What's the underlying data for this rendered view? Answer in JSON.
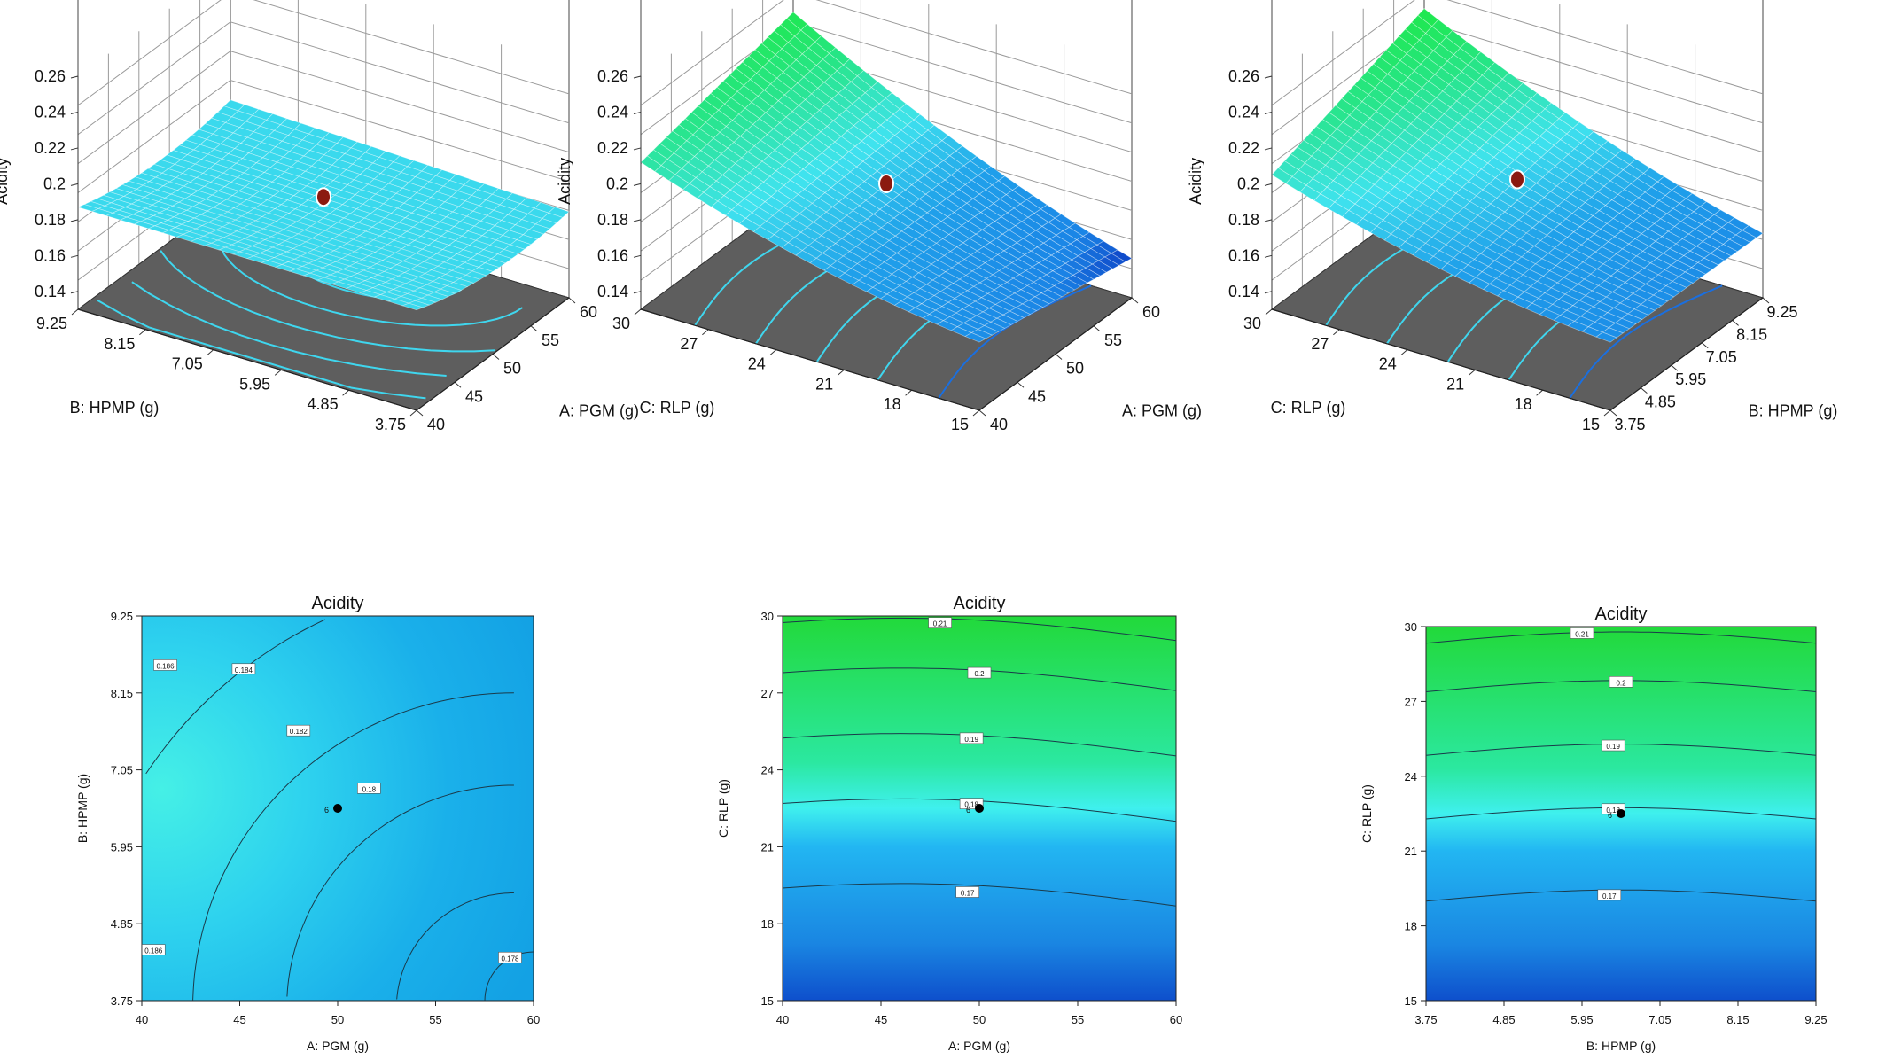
{
  "chart_data": [
    {
      "panel": "3d-surface",
      "type": "surface",
      "zlabel": "Acidity",
      "zticks": [
        "0.14",
        "0.16",
        "0.18",
        "0.2",
        "0.22",
        "0.24",
        "0.26"
      ],
      "zlim": [
        0.14,
        0.26
      ],
      "xlabel": "A: PGM (g)",
      "xticks": [
        "40",
        "45",
        "50",
        "55",
        "60"
      ],
      "ylabel": "B: HPMP (g)",
      "yticks": [
        "3.75",
        "4.85",
        "5.95",
        "7.05",
        "8.15",
        "9.25"
      ],
      "corner_values": {
        "xmin_ymin": 0.186,
        "xmax_ymin": 0.178,
        "xmin_ymax": 0.187,
        "xmax_ymax": 0.184
      },
      "center_point": {
        "x": 50,
        "y": 6.5,
        "z": 0.181
      }
    },
    {
      "panel": "3d-surface",
      "type": "surface",
      "zlabel": "Acidity",
      "zticks": [
        "0.14",
        "0.16",
        "0.18",
        "0.2",
        "0.22",
        "0.24",
        "0.26"
      ],
      "zlim": [
        0.14,
        0.26
      ],
      "xlabel": "A: PGM (g)",
      "xticks": [
        "40",
        "45",
        "50",
        "55",
        "60"
      ],
      "ylabel": "C: RLP (g)",
      "yticks": [
        "15",
        "18",
        "21",
        "24",
        "27",
        "30"
      ],
      "corner_values": {
        "xmin_ymin": 0.168,
        "xmax_ymin": 0.152,
        "xmin_ymax": 0.212,
        "xmax_ymax": 0.233
      },
      "center_point": {
        "x": 50,
        "y": 22.5,
        "z": 0.181
      }
    },
    {
      "panel": "3d-surface",
      "type": "surface",
      "zlabel": "Acidity",
      "zticks": [
        "0.14",
        "0.16",
        "0.18",
        "0.2",
        "0.22",
        "0.24",
        "0.26"
      ],
      "zlim": [
        0.14,
        0.26
      ],
      "xlabel": "B: HPMP (g)",
      "xticks": [
        "3.75",
        "4.85",
        "5.95",
        "7.05",
        "8.15",
        "9.25"
      ],
      "ylabel": "C: RLP (g)",
      "yticks": [
        "15",
        "18",
        "21",
        "24",
        "27",
        "30"
      ],
      "corner_values": {
        "xmin_ymin": 0.168,
        "xmax_ymin": 0.166,
        "xmin_ymax": 0.205,
        "xmax_ymax": 0.235
      },
      "center_point": {
        "x": 6.5,
        "y": 22.5,
        "z": 0.181
      }
    },
    {
      "panel": "contour",
      "type": "heatmap",
      "title": "Acidity",
      "xlabel": "A: PGM (g)",
      "xticks": [
        "40",
        "45",
        "50",
        "55",
        "60"
      ],
      "ylabel": "B: HPMP (g)",
      "yticks": [
        "3.75",
        "4.85",
        "5.95",
        "7.05",
        "8.15",
        "9.25"
      ],
      "contour_labels": [
        "0.186",
        "0.184",
        "0.182",
        "0.18",
        "0.186",
        "0.178"
      ],
      "center_point": {
        "x": 50,
        "y": 6.5,
        "label": "6"
      }
    },
    {
      "panel": "contour",
      "type": "heatmap",
      "title": "Acidity",
      "xlabel": "A: PGM (g)",
      "xticks": [
        "40",
        "45",
        "50",
        "55",
        "60"
      ],
      "ylabel": "C: RLP (g)",
      "yticks": [
        "15",
        "18",
        "21",
        "24",
        "27",
        "30"
      ],
      "contour_labels": [
        "0.21",
        "0.2",
        "0.19",
        "0.18",
        "0.17"
      ],
      "center_point": {
        "x": 50,
        "y": 22.5,
        "label": "6"
      }
    },
    {
      "panel": "contour",
      "type": "heatmap",
      "title": "Acidity",
      "xlabel": "B: HPMP (g)",
      "xticks": [
        "3.75",
        "4.85",
        "5.95",
        "7.05",
        "8.15",
        "9.25"
      ],
      "ylabel": "C: RLP (g)",
      "yticks": [
        "15",
        "18",
        "21",
        "24",
        "27",
        "30"
      ],
      "contour_labels": [
        "0.21",
        "0.2",
        "0.19",
        "0.18",
        "0.17"
      ],
      "center_point": {
        "x": 6.5,
        "y": 22.5,
        "label": "6"
      }
    }
  ],
  "colors": {
    "surface_cyan": "#3fe3ee",
    "surface_green": "#1ee84a",
    "surface_blue": "#1a84e6",
    "surface_deep_blue": "#0a2fbd",
    "floor_gray": "#5e5e5e",
    "grid_line": "#9a9a9a",
    "design_point": "#8b1a10"
  }
}
